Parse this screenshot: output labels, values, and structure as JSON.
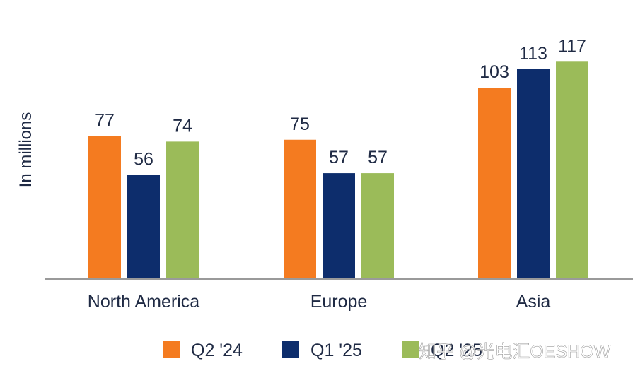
{
  "chart_data": {
    "type": "bar",
    "ylabel": "In millions",
    "categories": [
      "North America",
      "Europe",
      "Asia"
    ],
    "series": [
      {
        "name": "Q2 '24",
        "color": "#f47b20",
        "values": [
          77,
          75,
          103
        ]
      },
      {
        "name": "Q1 '25",
        "color": "#0d2d6c",
        "values": [
          56,
          57,
          113
        ]
      },
      {
        "name": "Q2 '25",
        "color": "#9bbb59",
        "values": [
          74,
          57,
          117
        ]
      }
    ],
    "ylim": [
      0,
      120
    ],
    "grid": false,
    "legend": "bottom"
  },
  "watermark": "知乎 @光电汇OESHOW"
}
